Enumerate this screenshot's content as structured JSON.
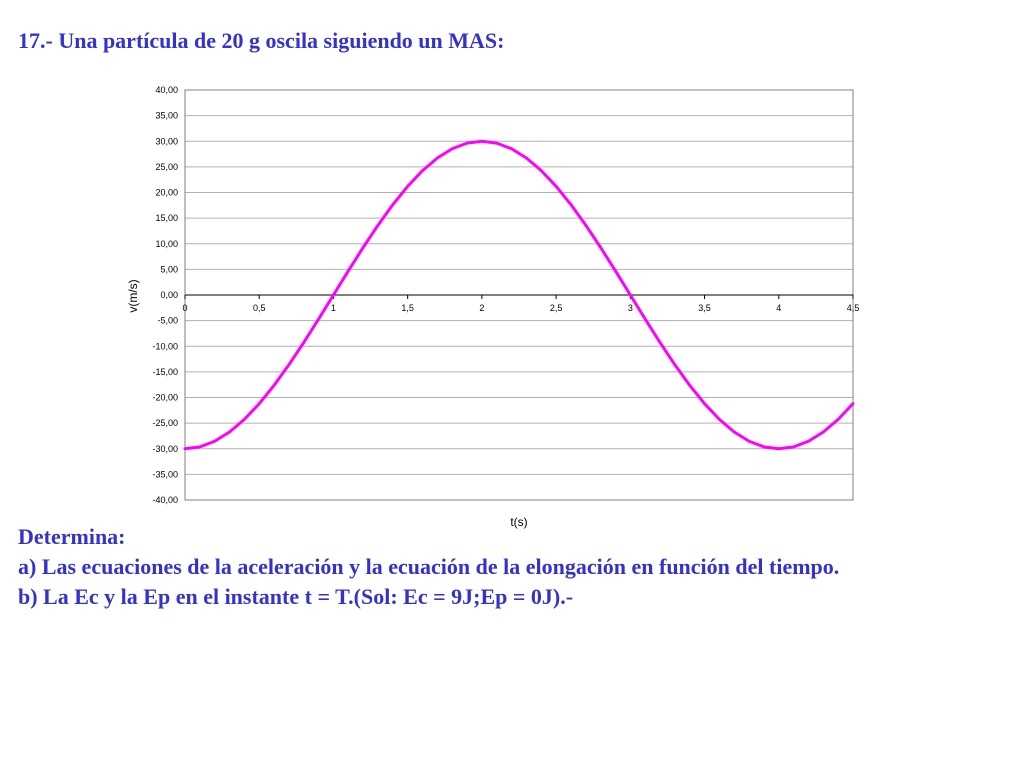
{
  "slide": {
    "heading": "17.- Una partícula de 20 g oscila siguiendo un MAS:",
    "prompt": "Determina:",
    "item_a": "a) Las ecuaciones de la aceleración y la ecuación de la elongación en función del tiempo.",
    "item_b": "b) La Ec y la Ep en el instante t = T.(Sol: Ec = 9J;Ep = 0J).-"
  },
  "colors": {
    "text": "#3333cc",
    "curve": "#ff00ff",
    "grid": "#b0b0b0",
    "axis": "#000000"
  },
  "chart_data": {
    "type": "line",
    "title": "",
    "xlabel": "t(s)",
    "ylabel": "v(m/s)",
    "xlim": [
      0,
      4.5
    ],
    "ylim": [
      -40,
      40
    ],
    "x_ticks": [
      0,
      0.5,
      1,
      1.5,
      2,
      2.5,
      3,
      3.5,
      4,
      4.5
    ],
    "x_tick_labels": [
      "0",
      "0,5",
      "1",
      "1,5",
      "2",
      "2,5",
      "3",
      "3,5",
      "4",
      "4,5"
    ],
    "y_ticks": [
      40,
      35,
      30,
      25,
      20,
      15,
      10,
      5,
      0,
      -5,
      -10,
      -15,
      -20,
      -25,
      -30,
      -35,
      -40
    ],
    "y_tick_labels": [
      "40,00",
      "35,00",
      "30,00",
      "25,00",
      "20,00",
      "15,00",
      "10,00",
      "5,00",
      "0,00",
      "-5,00",
      "-10,00",
      "-15,00",
      "-20,00",
      "-25,00",
      "-30,00",
      "-35,00",
      "-40,00"
    ],
    "grid": "horizontal",
    "legend": "none",
    "series": [
      {
        "color": "#ff00ff",
        "x": [
          0,
          0.1,
          0.2,
          0.3,
          0.4,
          0.5,
          0.6,
          0.7,
          0.8,
          0.9,
          1.0,
          1.1,
          1.2,
          1.3,
          1.4,
          1.5,
          1.6,
          1.7,
          1.8,
          1.9,
          2.0,
          2.1,
          2.2,
          2.3,
          2.4,
          2.5,
          2.6,
          2.7,
          2.8,
          2.9,
          3.0,
          3.1,
          3.2,
          3.3,
          3.4,
          3.5,
          3.6,
          3.7,
          3.8,
          3.9,
          4.0,
          4.1,
          4.2,
          4.3,
          4.4,
          4.5
        ],
        "y": [
          -30.0,
          -29.63,
          -28.53,
          -26.73,
          -24.27,
          -21.21,
          -17.63,
          -13.62,
          -9.27,
          -4.69,
          0.0,
          4.69,
          9.27,
          13.62,
          17.63,
          21.21,
          24.27,
          26.73,
          28.53,
          29.63,
          30.0,
          29.63,
          28.53,
          26.73,
          24.27,
          21.21,
          17.63,
          13.62,
          9.27,
          4.69,
          0.0,
          -4.69,
          -9.27,
          -13.62,
          -17.63,
          -21.21,
          -24.27,
          -26.73,
          -28.53,
          -29.63,
          -30.0,
          -29.63,
          -28.53,
          -26.73,
          -24.27,
          -21.21
        ]
      }
    ]
  }
}
